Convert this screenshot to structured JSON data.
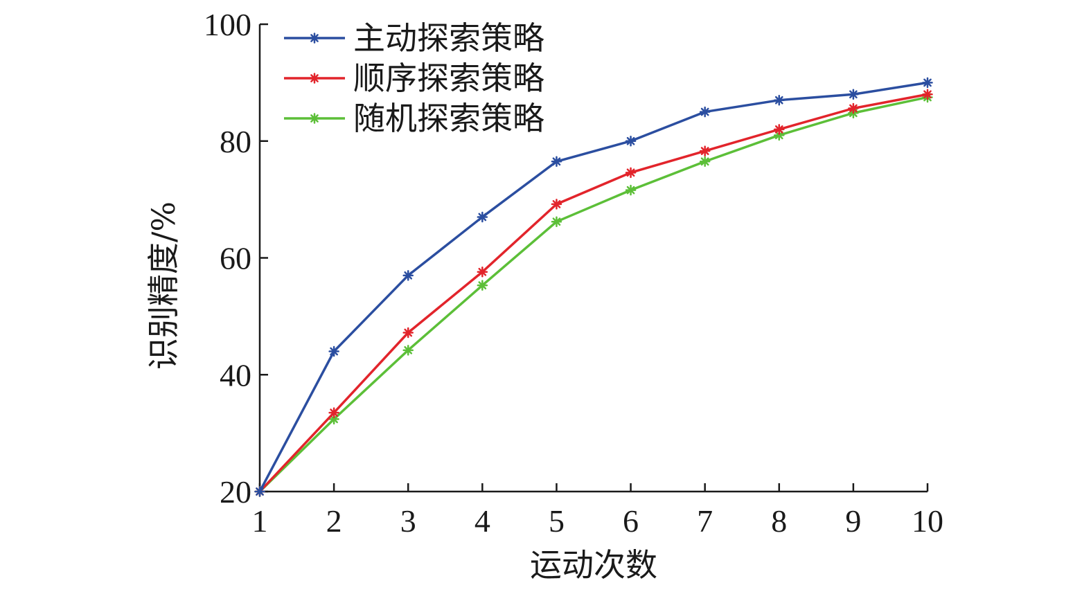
{
  "chart_data": {
    "type": "line",
    "title": "",
    "xlabel": "运动次数",
    "ylabel": "识别精度/%",
    "x": [
      1,
      2,
      3,
      4,
      5,
      6,
      7,
      8,
      9,
      10
    ],
    "xlim": [
      1,
      10
    ],
    "ylim": [
      20,
      100
    ],
    "yticks": [
      20,
      40,
      60,
      80,
      100
    ],
    "xticks": [
      1,
      2,
      3,
      4,
      5,
      6,
      7,
      8,
      9,
      10
    ],
    "grid": false,
    "legend_position": "top-left",
    "series": [
      {
        "name": "主动探索策略",
        "color": "#2b4ea0",
        "values": [
          20,
          44,
          57,
          67,
          76.5,
          80,
          85,
          87,
          88,
          90
        ]
      },
      {
        "name": "顺序探索策略",
        "color": "#e2242b",
        "values": [
          20,
          33.5,
          47.2,
          57.6,
          69.2,
          74.6,
          78.3,
          82,
          85.6,
          88
        ]
      },
      {
        "name": "随机探索策略",
        "color": "#5cbf38",
        "values": [
          20,
          32.4,
          44.2,
          55.3,
          66.2,
          71.6,
          76.5,
          81,
          84.8,
          87.5
        ]
      }
    ]
  }
}
